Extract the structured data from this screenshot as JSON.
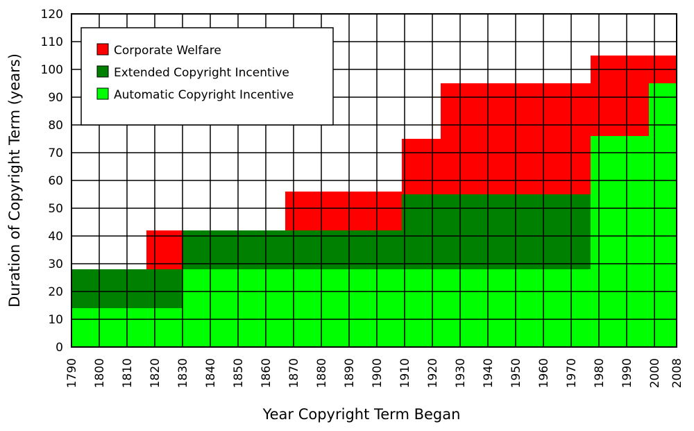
{
  "chart_data": {
    "type": "area",
    "title": "",
    "xlabel": "Year Copyright Term Began",
    "ylabel": "Duration of Copyright Term (years)",
    "xlim": [
      1790,
      2008
    ],
    "ylim": [
      0,
      120
    ],
    "x_ticks": [
      1790,
      1800,
      1810,
      1820,
      1830,
      1840,
      1850,
      1860,
      1870,
      1880,
      1890,
      1900,
      1910,
      1920,
      1930,
      1940,
      1950,
      1960,
      1970,
      1980,
      1990,
      2000,
      2008
    ],
    "y_ticks": [
      0,
      10,
      20,
      30,
      40,
      50,
      60,
      70,
      80,
      90,
      100,
      110,
      120
    ],
    "grid": true,
    "legend_position": "top-left",
    "stacked": true,
    "series": [
      {
        "name": "Automatic Copyright Incentive",
        "color": "#00ff00",
        "segments": [
          {
            "x0": 1790,
            "x1": 1830,
            "y0": 0,
            "y1": 14
          },
          {
            "x0": 1830,
            "x1": 1977,
            "y0": 0,
            "y1": 28
          },
          {
            "x0": 1977,
            "x1": 1998,
            "y0": 0,
            "y1": 76
          },
          {
            "x0": 1998,
            "x1": 2008,
            "y0": 0,
            "y1": 95
          }
        ]
      },
      {
        "name": "Extended Copyright Incentive",
        "color": "#008000",
        "segments": [
          {
            "x0": 1790,
            "x1": 1830,
            "y0": 14,
            "y1": 28
          },
          {
            "x0": 1830,
            "x1": 1909,
            "y0": 28,
            "y1": 42
          },
          {
            "x0": 1909,
            "x1": 1977,
            "y0": 28,
            "y1": 55
          }
        ]
      },
      {
        "name": "Corporate Welfare",
        "color": "#ff0000",
        "segments": [
          {
            "x0": 1817,
            "x1": 1830,
            "y0": 28,
            "y1": 42
          },
          {
            "x0": 1867,
            "x1": 1909,
            "y0": 42,
            "y1": 56
          },
          {
            "x0": 1909,
            "x1": 1923,
            "y0": 55,
            "y1": 75
          },
          {
            "x0": 1923,
            "x1": 1977,
            "y0": 55,
            "y1": 95
          },
          {
            "x0": 1977,
            "x1": 1998,
            "y0": 76,
            "y1": 105
          },
          {
            "x0": 1998,
            "x1": 2008,
            "y0": 95,
            "y1": 105
          }
        ]
      }
    ],
    "legend_order": [
      2,
      1,
      0
    ]
  }
}
